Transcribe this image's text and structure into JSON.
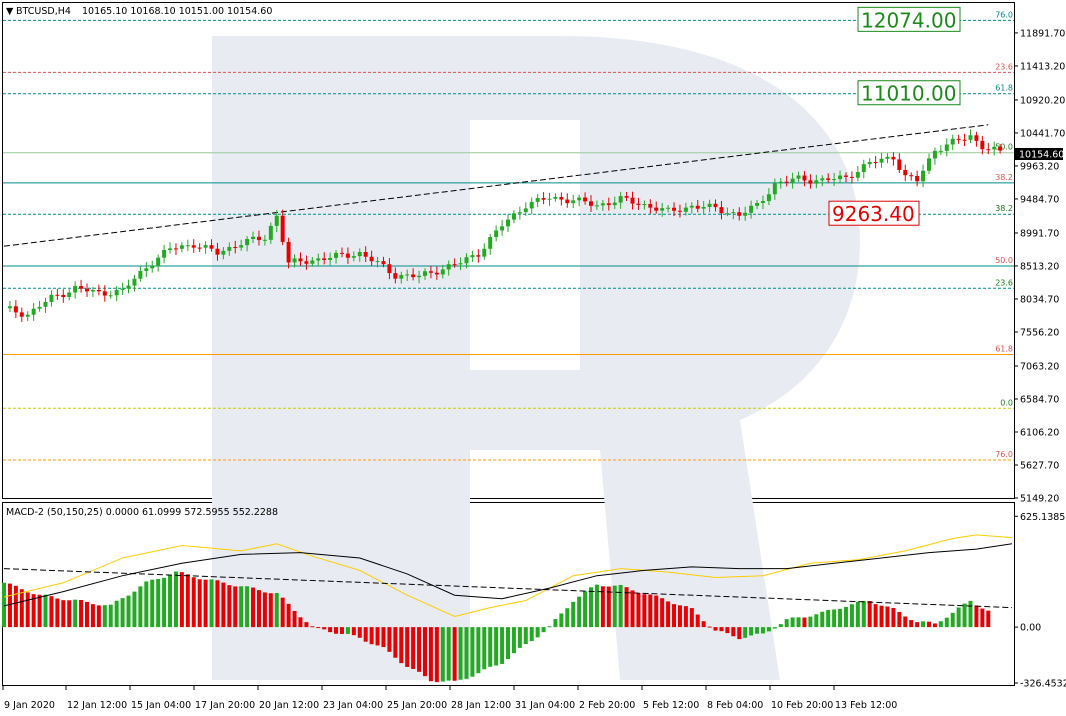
{
  "header": {
    "symbol_label": "BTCUSD,H4",
    "ohlc": "10165.10 10168.10 10151.00 10154.60"
  },
  "macd_header": "MACD-2 (50,150,25) 0.0000 61.0999 572.5955 552.2288",
  "watermark": "R",
  "price_axis": [
    "11891.70",
    "11413.20",
    "10920.20",
    "10441.70",
    "9963.20",
    "9484.70",
    "8991.70",
    "8513.20",
    "8034.70",
    "7556.20",
    "7063.20",
    "6584.70",
    "6106.20",
    "5627.70",
    "5149.20"
  ],
  "current_price": "10154.60",
  "macd_axis": [
    "625.1385",
    "0.00",
    "-326.4532"
  ],
  "time_axis": [
    "9 Jan 2020",
    "12 Jan 12:00",
    "15 Jan 04:00",
    "17 Jan 20:00",
    "20 Jan 12:00",
    "23 Jan 04:00",
    "25 Jan 20:00",
    "28 Jan 12:00",
    "31 Jan 04:00",
    "2 Feb 20:00",
    "5 Feb 12:00",
    "8 Feb 04:00",
    "10 Feb 20:00",
    "13 Feb 12:00"
  ],
  "colors": {
    "bull": "#22aa22",
    "bear": "#e60000",
    "teal": "#008b8b",
    "orange": "#ff9900",
    "olive": "#cccc00",
    "signal": "#ffcc00",
    "watermark": "#e8ecf2"
  },
  "fib_levels": [
    {
      "label": "76.0",
      "price": 12074.0,
      "color": "#008b8b",
      "label_color": "#008b8b",
      "dashed": true
    },
    {
      "label": "23.6",
      "price": 11320.0,
      "color": "#e05050",
      "label_color": "#e05050",
      "dashed": true
    },
    {
      "label": "61.8",
      "price": 11010.0,
      "color": "#008b8b",
      "label_color": "#008b8b",
      "dashed": true
    },
    {
      "label": "50.0",
      "price": 10154.6,
      "color": "#99cc99",
      "label_color": "#1a7a1a",
      "dashed": false
    },
    {
      "label": "38.2",
      "price": 9717.0,
      "color": "#008b8b",
      "label_color": "#e05050",
      "dashed": false
    },
    {
      "label": "38.2",
      "price": 9263.4,
      "color": "#008b8b",
      "label_color": "#1a7a1a",
      "dashed": true
    },
    {
      "label": "50.0",
      "price": 8513.2,
      "color": "#008b8b",
      "label_color": "#e05050",
      "dashed": false
    },
    {
      "label": "23.6",
      "price": 8190.0,
      "color": "#008b8b",
      "label_color": "#1a7a1a",
      "dashed": true
    },
    {
      "label": "61.8",
      "price": 7230.0,
      "color": "#ff9900",
      "label_color": "#e05050",
      "dashed": false
    },
    {
      "label": "0.0",
      "price": 6450.0,
      "color": "#cccc00",
      "label_color": "#1a7a1a",
      "dashed": true
    },
    {
      "label": "76.0",
      "price": 5700.0,
      "color": "#ff9900",
      "label_color": "#e05050",
      "dashed": true
    }
  ],
  "targets": [
    {
      "text": "12074.00",
      "price": 12074.0,
      "color": "#1a8a1a"
    },
    {
      "text": "11010.00",
      "price": 11010.0,
      "color": "#1a8a1a"
    },
    {
      "text": "9263.40",
      "price": 9263.4,
      "color": "#e00000"
    }
  ],
  "chart_data": {
    "type": "candlestick",
    "title": "BTCUSD,H4",
    "ylim": [
      5149.2,
      12340
    ],
    "x": [
      "9 Jan 2020",
      "12 Jan 12:00",
      "15 Jan 04:00",
      "17 Jan 20:00",
      "20 Jan 12:00",
      "23 Jan 04:00",
      "25 Jan 20:00",
      "28 Jan 12:00",
      "31 Jan 04:00",
      "2 Feb 20:00",
      "5 Feb 12:00",
      "8 Feb 04:00",
      "10 Feb 20:00",
      "13 Feb 12:00"
    ],
    "close_path": [
      [
        0,
        7900
      ],
      [
        4,
        7810
      ],
      [
        8,
        8050
      ],
      [
        12,
        8190
      ],
      [
        16,
        8120
      ],
      [
        20,
        8150
      ],
      [
        24,
        8500
      ],
      [
        28,
        8760
      ],
      [
        32,
        8830
      ],
      [
        36,
        8700
      ],
      [
        40,
        8850
      ],
      [
        44,
        8920
      ],
      [
        46,
        9250
      ],
      [
        48,
        8550
      ],
      [
        52,
        8600
      ],
      [
        56,
        8650
      ],
      [
        60,
        8700
      ],
      [
        63,
        8550
      ],
      [
        66,
        8380
      ],
      [
        70,
        8360
      ],
      [
        73,
        8450
      ],
      [
        77,
        8560
      ],
      [
        80,
        8700
      ],
      [
        84,
        9100
      ],
      [
        88,
        9400
      ],
      [
        92,
        9500
      ],
      [
        96,
        9470
      ],
      [
        100,
        9390
      ],
      [
        104,
        9480
      ],
      [
        108,
        9400
      ],
      [
        112,
        9300
      ],
      [
        116,
        9380
      ],
      [
        120,
        9350
      ],
      [
        124,
        9250
      ],
      [
        127,
        9390
      ],
      [
        130,
        9700
      ],
      [
        134,
        9780
      ],
      [
        138,
        9750
      ],
      [
        142,
        9800
      ],
      [
        146,
        10000
      ],
      [
        150,
        10100
      ],
      [
        152,
        9800
      ],
      [
        154,
        9750
      ],
      [
        157,
        10200
      ],
      [
        160,
        10300
      ],
      [
        163,
        10400
      ],
      [
        165,
        10250
      ],
      [
        168,
        10154.6
      ]
    ],
    "trendline": [
      [
        0,
        8800
      ],
      [
        166,
        10560
      ]
    ],
    "macd_ylim": [
      -326.4532,
      700
    ],
    "macd_histogram_path": [
      [
        0,
        250
      ],
      [
        6,
        180
      ],
      [
        12,
        150
      ],
      [
        18,
        120
      ],
      [
        24,
        250
      ],
      [
        29,
        310
      ],
      [
        34,
        270
      ],
      [
        40,
        230
      ],
      [
        46,
        190
      ],
      [
        52,
        0
      ],
      [
        56,
        -30
      ],
      [
        60,
        -60
      ],
      [
        64,
        -120
      ],
      [
        68,
        -220
      ],
      [
        72,
        -300
      ],
      [
        76,
        -310
      ],
      [
        80,
        -260
      ],
      [
        84,
        -200
      ],
      [
        88,
        -100
      ],
      [
        92,
        0
      ],
      [
        96,
        150
      ],
      [
        100,
        240
      ],
      [
        104,
        230
      ],
      [
        108,
        190
      ],
      [
        112,
        150
      ],
      [
        116,
        100
      ],
      [
        120,
        -20
      ],
      [
        124,
        -60
      ],
      [
        128,
        -40
      ],
      [
        132,
        40
      ],
      [
        138,
        80
      ],
      [
        142,
        120
      ],
      [
        146,
        150
      ],
      [
        150,
        100
      ],
      [
        154,
        30
      ],
      [
        157,
        20
      ],
      [
        160,
        80
      ],
      [
        163,
        150
      ],
      [
        166,
        90
      ]
    ],
    "macd_signal_path": [
      [
        0,
        170
      ],
      [
        10,
        250
      ],
      [
        20,
        390
      ],
      [
        30,
        460
      ],
      [
        40,
        430
      ],
      [
        46,
        470
      ],
      [
        52,
        400
      ],
      [
        60,
        320
      ],
      [
        68,
        180
      ],
      [
        76,
        60
      ],
      [
        82,
        110
      ],
      [
        88,
        150
      ],
      [
        96,
        290
      ],
      [
        104,
        330
      ],
      [
        112,
        310
      ],
      [
        120,
        280
      ],
      [
        128,
        290
      ],
      [
        136,
        360
      ],
      [
        144,
        380
      ],
      [
        152,
        430
      ],
      [
        160,
        500
      ],
      [
        164,
        520
      ],
      [
        170,
        505
      ]
    ],
    "macd_main_path": [
      [
        0,
        120
      ],
      [
        10,
        200
      ],
      [
        20,
        290
      ],
      [
        30,
        360
      ],
      [
        40,
        410
      ],
      [
        50,
        420
      ],
      [
        60,
        390
      ],
      [
        68,
        300
      ],
      [
        76,
        180
      ],
      [
        84,
        160
      ],
      [
        92,
        220
      ],
      [
        100,
        290
      ],
      [
        108,
        320
      ],
      [
        116,
        340
      ],
      [
        124,
        330
      ],
      [
        132,
        330
      ],
      [
        140,
        360
      ],
      [
        148,
        390
      ],
      [
        156,
        420
      ],
      [
        164,
        440
      ],
      [
        170,
        470
      ]
    ],
    "macd_dash_line": [
      [
        0,
        330
      ],
      [
        170,
        110
      ]
    ]
  }
}
